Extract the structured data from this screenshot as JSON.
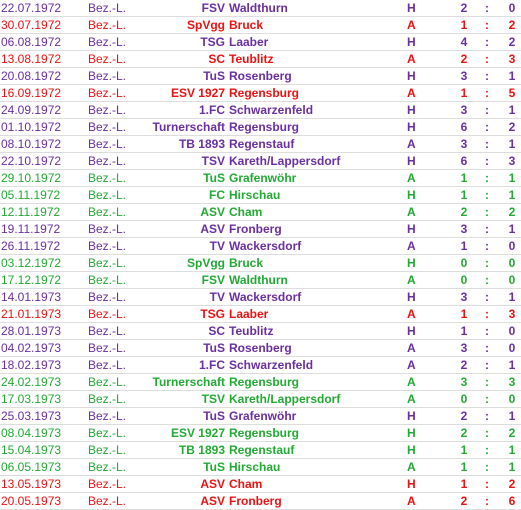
{
  "colors": {
    "purple": "#6a2fa0",
    "red": "#ee1111",
    "green": "#22aa33"
  },
  "matches": [
    {
      "date": "22.07.1972",
      "league": "Bez.-L.",
      "prefix": "FSV",
      "club": "Waldthurn",
      "venue": "H",
      "gh": "2",
      "ga": "0",
      "color": "purple"
    },
    {
      "date": "30.07.1972",
      "league": "Bez.-L.",
      "prefix": "SpVgg",
      "club": "Bruck",
      "venue": "A",
      "gh": "1",
      "ga": "2",
      "color": "red"
    },
    {
      "date": "06.08.1972",
      "league": "Bez.-L.",
      "prefix": "TSG",
      "club": "Laaber",
      "venue": "H",
      "gh": "4",
      "ga": "2",
      "color": "purple"
    },
    {
      "date": "13.08.1972",
      "league": "Bez.-L.",
      "prefix": "SC",
      "club": "Teublitz",
      "venue": "A",
      "gh": "2",
      "ga": "3",
      "color": "red"
    },
    {
      "date": "20.08.1972",
      "league": "Bez.-L.",
      "prefix": "TuS",
      "club": "Rosenberg",
      "venue": "H",
      "gh": "3",
      "ga": "1",
      "color": "purple"
    },
    {
      "date": "16.09.1972",
      "league": "Bez.-L.",
      "prefix": "ESV 1927",
      "club": "Regensburg",
      "venue": "A",
      "gh": "1",
      "ga": "5",
      "color": "red"
    },
    {
      "date": "24.09.1972",
      "league": "Bez.-L.",
      "prefix": "1.FC",
      "club": "Schwarzenfeld",
      "venue": "H",
      "gh": "3",
      "ga": "1",
      "color": "purple"
    },
    {
      "date": "01.10.1972",
      "league": "Bez.-L.",
      "prefix": "Turnerschaft",
      "club": "Regensburg",
      "venue": "H",
      "gh": "6",
      "ga": "2",
      "color": "purple"
    },
    {
      "date": "08.10.1972",
      "league": "Bez.-L.",
      "prefix": "TB 1893",
      "club": "Regenstauf",
      "venue": "A",
      "gh": "3",
      "ga": "1",
      "color": "purple"
    },
    {
      "date": "22.10.1972",
      "league": "Bez.-L.",
      "prefix": "TSV",
      "club": "Kareth/Lappersdorf",
      "venue": "H",
      "gh": "6",
      "ga": "3",
      "color": "purple"
    },
    {
      "date": "29.10.1972",
      "league": "Bez.-L.",
      "prefix": "TuS",
      "club": "Grafenwöhr",
      "venue": "A",
      "gh": "1",
      "ga": "1",
      "color": "green"
    },
    {
      "date": "05.11.1972",
      "league": "Bez.-L.",
      "prefix": "FC",
      "club": "Hirschau",
      "venue": "H",
      "gh": "1",
      "ga": "1",
      "color": "green"
    },
    {
      "date": "12.11.1972",
      "league": "Bez.-L.",
      "prefix": "ASV",
      "club": "Cham",
      "venue": "A",
      "gh": "2",
      "ga": "2",
      "color": "green"
    },
    {
      "date": "19.11.1972",
      "league": "Bez.-L.",
      "prefix": "ASV",
      "club": "Fronberg",
      "venue": "H",
      "gh": "3",
      "ga": "1",
      "color": "purple"
    },
    {
      "date": "26.11.1972",
      "league": "Bez.-L.",
      "prefix": "TV",
      "club": "Wackersdorf",
      "venue": "A",
      "gh": "1",
      "ga": "0",
      "color": "purple"
    },
    {
      "date": "03.12.1972",
      "league": "Bez.-L.",
      "prefix": "SpVgg",
      "club": "Bruck",
      "venue": "H",
      "gh": "0",
      "ga": "0",
      "color": "green"
    },
    {
      "date": "17.12.1972",
      "league": "Bez.-L.",
      "prefix": "FSV",
      "club": "Waldthurn",
      "venue": "A",
      "gh": "0",
      "ga": "0",
      "color": "green"
    },
    {
      "date": "14.01.1973",
      "league": "Bez.-L.",
      "prefix": "TV",
      "club": "Wackersdorf",
      "venue": "H",
      "gh": "3",
      "ga": "1",
      "color": "purple"
    },
    {
      "date": "21.01.1973",
      "league": "Bez.-L.",
      "prefix": "TSG",
      "club": "Laaber",
      "venue": "A",
      "gh": "1",
      "ga": "3",
      "color": "red"
    },
    {
      "date": "28.01.1973",
      "league": "Bez.-L.",
      "prefix": "SC",
      "club": "Teublitz",
      "venue": "H",
      "gh": "1",
      "ga": "0",
      "color": "purple"
    },
    {
      "date": "04.02.1973",
      "league": "Bez.-L.",
      "prefix": "TuS",
      "club": "Rosenberg",
      "venue": "A",
      "gh": "3",
      "ga": "0",
      "color": "purple"
    },
    {
      "date": "18.02.1973",
      "league": "Bez.-L.",
      "prefix": "1.FC",
      "club": "Schwarzenfeld",
      "venue": "A",
      "gh": "2",
      "ga": "1",
      "color": "purple"
    },
    {
      "date": "24.02.1973",
      "league": "Bez.-L.",
      "prefix": "Turnerschaft",
      "club": "Regensburg",
      "venue": "A",
      "gh": "3",
      "ga": "3",
      "color": "green"
    },
    {
      "date": "17.03.1973",
      "league": "Bez.-L.",
      "prefix": "TSV",
      "club": "Kareth/Lappersdorf",
      "venue": "A",
      "gh": "0",
      "ga": "0",
      "color": "green"
    },
    {
      "date": "25.03.1973",
      "league": "Bez.-L.",
      "prefix": "TuS",
      "club": "Grafenwöhr",
      "venue": "H",
      "gh": "2",
      "ga": "1",
      "color": "purple"
    },
    {
      "date": "08.04.1973",
      "league": "Bez.-L.",
      "prefix": "ESV 1927",
      "club": "Regensburg",
      "venue": "H",
      "gh": "2",
      "ga": "2",
      "color": "green"
    },
    {
      "date": "15.04.1973",
      "league": "Bez.-L.",
      "prefix": "TB 1893",
      "club": "Regenstauf",
      "venue": "H",
      "gh": "1",
      "ga": "1",
      "color": "green"
    },
    {
      "date": "06.05.1973",
      "league": "Bez.-L.",
      "prefix": "TuS",
      "club": "Hirschau",
      "venue": "A",
      "gh": "1",
      "ga": "1",
      "color": "green"
    },
    {
      "date": "13.05.1973",
      "league": "Bez.-L.",
      "prefix": "ASV",
      "club": "Cham",
      "venue": "H",
      "gh": "1",
      "ga": "2",
      "color": "red"
    },
    {
      "date": "20.05.1973",
      "league": "Bez.-L.",
      "prefix": "ASV",
      "club": "Fronberg",
      "venue": "A",
      "gh": "2",
      "ga": "6",
      "color": "red"
    }
  ]
}
